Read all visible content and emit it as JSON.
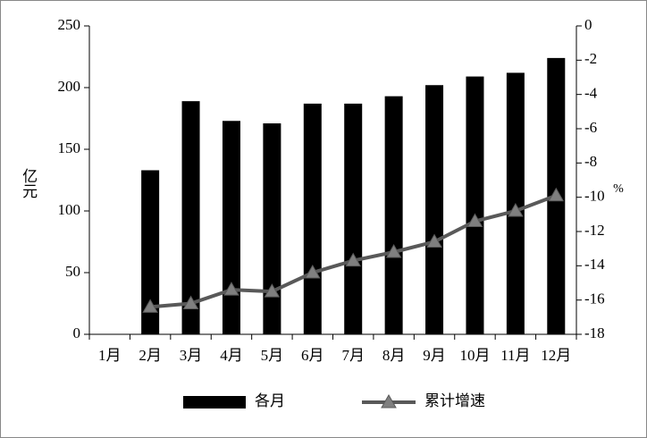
{
  "chart_data": {
    "type": "bar-line",
    "categories": [
      "1月",
      "2月",
      "3月",
      "4月",
      "5月",
      "6月",
      "7月",
      "8月",
      "9月",
      "10月",
      "11月",
      "12月"
    ],
    "ylabel": "亿元",
    "y2label": "%",
    "ylim": [
      0,
      250
    ],
    "yticks": [
      0,
      50,
      100,
      150,
      200,
      250
    ],
    "y2lim": [
      -18,
      0
    ],
    "y2ticks": [
      -18,
      -16,
      -14,
      -12,
      -10,
      -8,
      -6,
      -4,
      -2,
      0
    ],
    "legend": "bottom",
    "series": [
      {
        "name": "各月",
        "type": "bar",
        "color": "#000000",
        "values": [
          null,
          133,
          189,
          173,
          171,
          187,
          187,
          193,
          202,
          209,
          212,
          224
        ]
      },
      {
        "name": "累计增速",
        "type": "line",
        "axis": "y2",
        "color": "#595959",
        "marker_color": "#7f7f7f",
        "values": [
          null,
          -16.4,
          -16.2,
          -15.4,
          -15.5,
          -14.4,
          -13.7,
          -13.2,
          -12.6,
          -11.4,
          -10.8,
          -9.9
        ]
      }
    ]
  }
}
